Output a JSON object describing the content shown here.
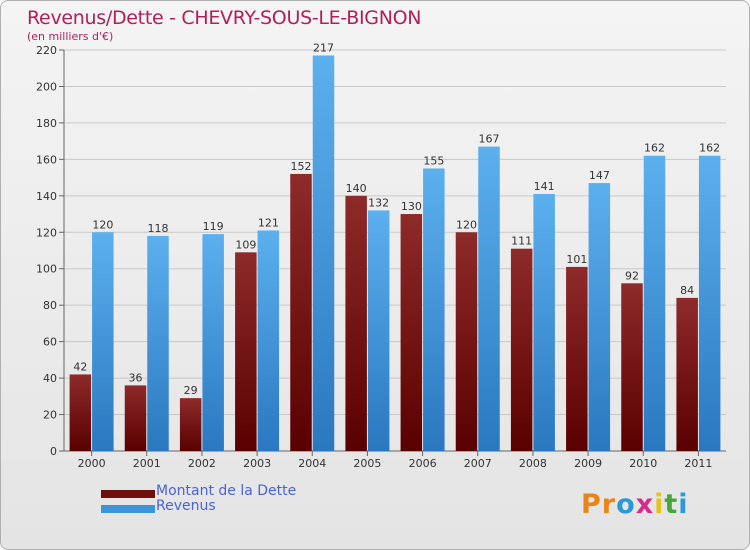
{
  "title": "Revenus/Dette - CHEVRY-SOUS-LE-BIGNON",
  "subtitle": "(en milliers d'€)",
  "logo_text": "Proxiti",
  "colors": {
    "dette": "#7a1212",
    "revenus": "#3a95dc",
    "title": "#b0205a",
    "legend_text": "#4a63d8"
  },
  "chart_data": {
    "type": "bar",
    "title": "Revenus/Dette - CHEVRY-SOUS-LE-BIGNON",
    "subtitle": "(en milliers d'€)",
    "xlabel": "",
    "ylabel": "",
    "ylim": [
      0,
      220
    ],
    "yticks": [
      0,
      20,
      40,
      60,
      80,
      100,
      120,
      140,
      160,
      180,
      200,
      220
    ],
    "grid": true,
    "legend_position": "bottom-left",
    "categories": [
      "2000",
      "2001",
      "2002",
      "2003",
      "2004",
      "2005",
      "2006",
      "2007",
      "2008",
      "2009",
      "2010",
      "2011"
    ],
    "series": [
      {
        "name": "Montant de la Dette",
        "color": "#7a1212",
        "values": [
          42,
          36,
          29,
          109,
          152,
          140,
          130,
          120,
          111,
          101,
          92,
          84
        ]
      },
      {
        "name": "Revenus",
        "color": "#3a95dc",
        "values": [
          120,
          118,
          119,
          121,
          217,
          132,
          155,
          167,
          141,
          147,
          162,
          162
        ]
      }
    ]
  }
}
